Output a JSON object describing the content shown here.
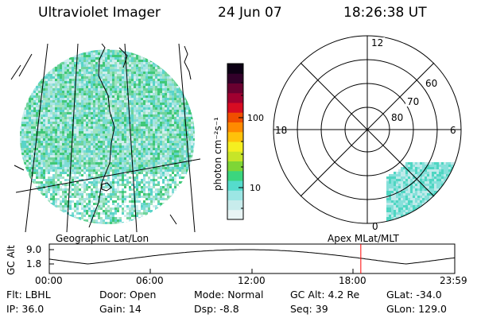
{
  "header": {
    "instrument": "Ultraviolet Imager",
    "date": "24 Jun 07",
    "time": "18:26:38 UT"
  },
  "colorbar": {
    "axis_label": "photon cm⁻²s⁻¹",
    "ticks": [
      "100",
      "10"
    ],
    "colors": [
      "#e8f4f4",
      "#c8ecec",
      "#9ce6e4",
      "#55dccc",
      "#3bd67e",
      "#7ed636",
      "#c7e528",
      "#f5ef20",
      "#ffc20a",
      "#ff8a00",
      "#f04e00",
      "#d70c22",
      "#a00030",
      "#6a0030",
      "#32002a",
      "#0c0014"
    ]
  },
  "geo_panel": {
    "caption": "Geographic Lat/Lon",
    "speckle_colors": [
      "#cfeeee",
      "#a8e4e4",
      "#7fdcd6",
      "#5ad4c8",
      "#9fe3c0",
      "#6fd49c",
      "#40c878"
    ]
  },
  "polar_panel": {
    "caption": "Apex MLat/MLT",
    "mlt_labels": {
      "top": "12",
      "bottom": "0",
      "left": "18",
      "right": "6"
    },
    "mlat_labels": [
      "60",
      "70",
      "80"
    ]
  },
  "orbit_plot": {
    "ylabel": "GC Alt",
    "yticks": [
      "9.0",
      "1.8"
    ],
    "xticks": [
      "00:00",
      "06:00",
      "12:00",
      "18:00",
      "23:59"
    ],
    "altitude_min_re": 1.8,
    "altitude_max_re": 9.0,
    "marker_hour": 18.44,
    "marker_color": "#ff0000"
  },
  "info": {
    "flt": "Flt: LBHL",
    "door": "Door: Open",
    "mode": "Mode: Normal",
    "gc_alt": "GC Alt: 4.2 Re",
    "glat": "GLat: -34.0",
    "ip": "IP: 36.0",
    "gain": "Gain: 14",
    "dsp": "Dsp:    -8.8",
    "seq": "Seq: 39",
    "glon": "GLon: 129.0"
  }
}
